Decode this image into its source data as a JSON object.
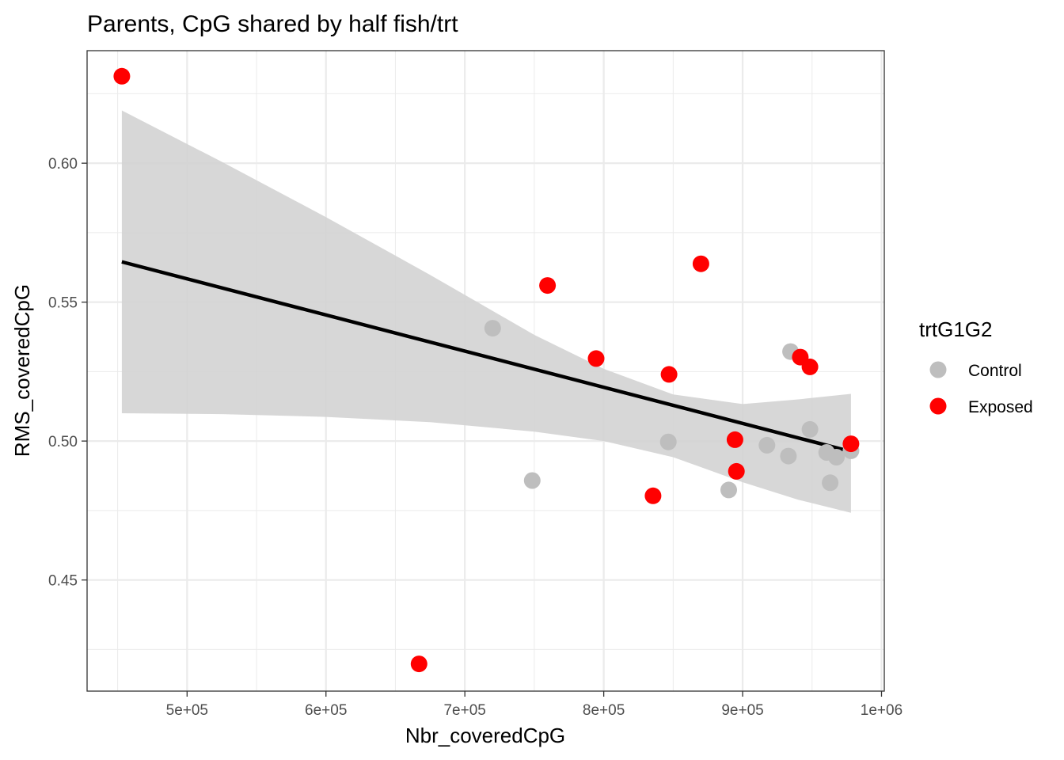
{
  "chart_data": {
    "type": "scatter",
    "title": "Parents, CpG shared by half fish/trt",
    "xlabel": "Nbr_coveredCpG",
    "ylabel": "RMS_coveredCpG",
    "xlim": [
      428000,
      1002000
    ],
    "ylim": [
      0.41,
      0.6405
    ],
    "x_ticks": [
      500000,
      600000,
      700000,
      800000,
      900000,
      1000000
    ],
    "x_tick_labels": [
      "5e+05",
      "6e+05",
      "7e+05",
      "8e+05",
      "9e+05",
      "1e+06"
    ],
    "y_ticks": [
      0.45,
      0.5,
      0.55,
      0.6
    ],
    "y_tick_labels": [
      "0.45",
      "0.50",
      "0.55",
      "0.60"
    ],
    "grid": true,
    "legend": {
      "title": "trtG1G2",
      "position": "right",
      "entries": [
        {
          "label": "Control",
          "color": "#bebebe"
        },
        {
          "label": "Exposed",
          "color": "#ff0000"
        }
      ]
    },
    "series": [
      {
        "name": "Control",
        "color": "#bebebe",
        "points": [
          {
            "x": 720000,
            "y": 0.5406
          },
          {
            "x": 748500,
            "y": 0.4858
          },
          {
            "x": 846500,
            "y": 0.4997
          },
          {
            "x": 890000,
            "y": 0.4824
          },
          {
            "x": 917500,
            "y": 0.4985
          },
          {
            "x": 933000,
            "y": 0.4946
          },
          {
            "x": 934500,
            "y": 0.5322
          },
          {
            "x": 948500,
            "y": 0.5042
          },
          {
            "x": 960500,
            "y": 0.4959
          },
          {
            "x": 963000,
            "y": 0.485
          },
          {
            "x": 967500,
            "y": 0.4942
          },
          {
            "x": 978000,
            "y": 0.4965
          }
        ]
      },
      {
        "name": "Exposed",
        "color": "#ff0000",
        "points": [
          {
            "x": 453000,
            "y": 0.6313
          },
          {
            "x": 667000,
            "y": 0.4198
          },
          {
            "x": 759500,
            "y": 0.556
          },
          {
            "x": 794500,
            "y": 0.5297
          },
          {
            "x": 835500,
            "y": 0.4803
          },
          {
            "x": 847000,
            "y": 0.524
          },
          {
            "x": 870000,
            "y": 0.5638
          },
          {
            "x": 894500,
            "y": 0.5005
          },
          {
            "x": 895500,
            "y": 0.4891
          },
          {
            "x": 941500,
            "y": 0.5302
          },
          {
            "x": 948500,
            "y": 0.5267
          },
          {
            "x": 978000,
            "y": 0.499
          }
        ]
      }
    ],
    "smooth": {
      "method": "lm",
      "color": "#000000",
      "ribbon_color": "#d3d3d3",
      "x": [
        453000,
        978000
      ],
      "y": [
        0.5645,
        0.4962
      ],
      "band": [
        {
          "x": 453000,
          "lower": 0.51,
          "upper": 0.619
        },
        {
          "x": 525000,
          "lower": 0.5097,
          "upper": 0.6005
        },
        {
          "x": 600000,
          "lower": 0.5087,
          "upper": 0.5806
        },
        {
          "x": 675000,
          "lower": 0.5068,
          "upper": 0.5598
        },
        {
          "x": 750000,
          "lower": 0.5034,
          "upper": 0.5382
        },
        {
          "x": 800000,
          "lower": 0.5,
          "upper": 0.526
        },
        {
          "x": 850000,
          "lower": 0.4942,
          "upper": 0.5168
        },
        {
          "x": 900000,
          "lower": 0.4852,
          "upper": 0.5133
        },
        {
          "x": 940000,
          "lower": 0.4789,
          "upper": 0.515
        },
        {
          "x": 978000,
          "lower": 0.4742,
          "upper": 0.517
        }
      ]
    }
  }
}
